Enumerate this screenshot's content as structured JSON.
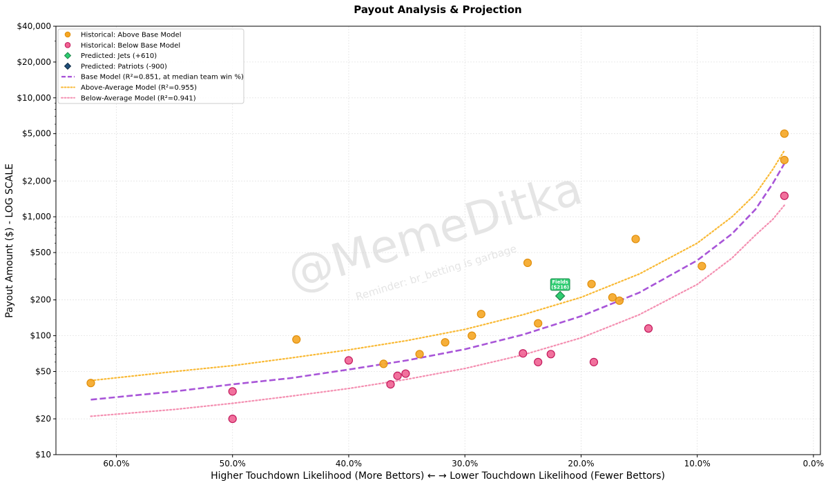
{
  "chart_data": {
    "type": "scatter",
    "title": "Payout Analysis & Projection",
    "xlabel": "Higher Touchdown Likelihood (More Bettors) ← → Lower Touchdown Likelihood (Fewer Bettors)",
    "ylabel": "Payout Amount ($) - LOG SCALE",
    "x_unit": "touchdown likelihood %",
    "x_reversed": true,
    "xlim": [
      65.2,
      -0.6
    ],
    "x_ticks": [
      60,
      50,
      40,
      30,
      20,
      10,
      0
    ],
    "x_tick_labels": [
      "60.0%",
      "50.0%",
      "40.0%",
      "30.0%",
      "20.0%",
      "10.0%",
      "0.0%"
    ],
    "y_scale": "log",
    "ylim": [
      10,
      40000
    ],
    "y_ticks": [
      10,
      20,
      50,
      100,
      200,
      500,
      1000,
      2000,
      5000,
      10000,
      20000,
      40000
    ],
    "y_tick_labels": [
      "$10",
      "$20",
      "$50",
      "$100",
      "$200",
      "$500",
      "$1,000",
      "$2,000",
      "$5,000",
      "$10,000",
      "$20,000",
      "$40,000"
    ],
    "grid": true,
    "legend_position": "top-left",
    "colors": {
      "above": "#f5a623",
      "above_edge": "#e08e0b",
      "below": "#f06292",
      "below_edge": "#c2185b",
      "jets": "#2ecc71",
      "jets_edge": "#1e8449",
      "patriots": "#1f4e79",
      "base_model": "#a855d8",
      "above_model": "#f9b934",
      "below_model": "#f48fb1"
    },
    "series": [
      {
        "name": "Historical: Above Base Model",
        "kind": "scatter",
        "color_key": "above",
        "points": [
          {
            "x": 62.2,
            "y": 40
          },
          {
            "x": 44.5,
            "y": 93
          },
          {
            "x": 37.0,
            "y": 58
          },
          {
            "x": 33.9,
            "y": 70
          },
          {
            "x": 31.7,
            "y": 88
          },
          {
            "x": 29.4,
            "y": 100
          },
          {
            "x": 28.6,
            "y": 152
          },
          {
            "x": 24.6,
            "y": 410
          },
          {
            "x": 23.7,
            "y": 127
          },
          {
            "x": 19.1,
            "y": 272
          },
          {
            "x": 17.3,
            "y": 210
          },
          {
            "x": 16.7,
            "y": 197
          },
          {
            "x": 15.3,
            "y": 650
          },
          {
            "x": 9.6,
            "y": 385
          },
          {
            "x": 2.5,
            "y": 3000
          },
          {
            "x": 2.5,
            "y": 5000
          }
        ]
      },
      {
        "name": "Historical: Below Base Model",
        "kind": "scatter",
        "color_key": "below",
        "points": [
          {
            "x": 50.0,
            "y": 34
          },
          {
            "x": 50.0,
            "y": 20
          },
          {
            "x": 40.0,
            "y": 62
          },
          {
            "x": 36.4,
            "y": 39
          },
          {
            "x": 35.8,
            "y": 46
          },
          {
            "x": 35.1,
            "y": 48
          },
          {
            "x": 25.0,
            "y": 71
          },
          {
            "x": 23.7,
            "y": 60
          },
          {
            "x": 22.6,
            "y": 70
          },
          {
            "x": 18.9,
            "y": 60
          },
          {
            "x": 14.2,
            "y": 115
          },
          {
            "x": 2.5,
            "y": 1500
          }
        ]
      },
      {
        "name": "Predicted: Jets (+610)",
        "kind": "diamond",
        "color_key": "jets",
        "points": [
          {
            "x": 21.8,
            "y": 216
          }
        ],
        "callout": [
          "Fields",
          "($216)"
        ]
      },
      {
        "name": "Predicted: Patriots (-900)",
        "kind": "diamond",
        "color_key": "patriots",
        "points": []
      },
      {
        "name": "Base Model (R²=0.851, at median team win %)",
        "kind": "dashed-line",
        "color_key": "base_model",
        "points": [
          {
            "x": 62.2,
            "y": 29
          },
          {
            "x": 55,
            "y": 34
          },
          {
            "x": 50,
            "y": 39
          },
          {
            "x": 45,
            "y": 44
          },
          {
            "x": 40,
            "y": 52
          },
          {
            "x": 35,
            "y": 62
          },
          {
            "x": 30,
            "y": 77
          },
          {
            "x": 25,
            "y": 102
          },
          {
            "x": 20,
            "y": 146
          },
          {
            "x": 15,
            "y": 230
          },
          {
            "x": 10,
            "y": 430
          },
          {
            "x": 7,
            "y": 720
          },
          {
            "x": 5,
            "y": 1150
          },
          {
            "x": 3.5,
            "y": 1900
          },
          {
            "x": 2.5,
            "y": 2800
          }
        ]
      },
      {
        "name": "Above-Average Model (R²=0.955)",
        "kind": "dotted-line",
        "color_key": "above_model",
        "points": [
          {
            "x": 62.2,
            "y": 42
          },
          {
            "x": 55,
            "y": 50
          },
          {
            "x": 50,
            "y": 56
          },
          {
            "x": 45,
            "y": 65
          },
          {
            "x": 40,
            "y": 76
          },
          {
            "x": 35,
            "y": 91
          },
          {
            "x": 30,
            "y": 113
          },
          {
            "x": 25,
            "y": 150
          },
          {
            "x": 20,
            "y": 210
          },
          {
            "x": 15,
            "y": 330
          },
          {
            "x": 10,
            "y": 600
          },
          {
            "x": 7,
            "y": 1000
          },
          {
            "x": 5,
            "y": 1550
          },
          {
            "x": 3.5,
            "y": 2500
          },
          {
            "x": 2.5,
            "y": 3600
          }
        ]
      },
      {
        "name": "Below-Average Model (R²=0.941)",
        "kind": "dotted-line",
        "color_key": "below_model",
        "points": [
          {
            "x": 62.2,
            "y": 21
          },
          {
            "x": 55,
            "y": 24
          },
          {
            "x": 50,
            "y": 27
          },
          {
            "x": 45,
            "y": 31
          },
          {
            "x": 40,
            "y": 36
          },
          {
            "x": 35,
            "y": 43
          },
          {
            "x": 30,
            "y": 53
          },
          {
            "x": 25,
            "y": 69
          },
          {
            "x": 20,
            "y": 96
          },
          {
            "x": 15,
            "y": 150
          },
          {
            "x": 10,
            "y": 270
          },
          {
            "x": 7,
            "y": 450
          },
          {
            "x": 5,
            "y": 700
          },
          {
            "x": 3.5,
            "y": 950
          },
          {
            "x": 2.5,
            "y": 1250
          }
        ]
      }
    ],
    "watermark": "@MemeDitka",
    "watermark_sub": "Reminder: br_betting is garbage"
  }
}
